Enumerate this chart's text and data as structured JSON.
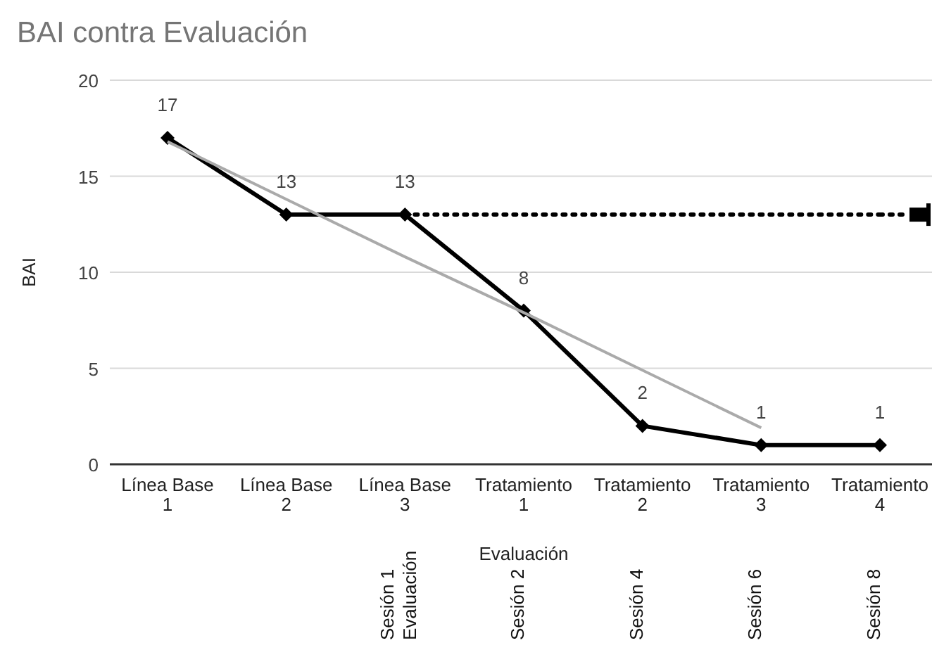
{
  "chart_data": {
    "type": "line",
    "title": "BAI contra Evaluación",
    "xlabel": "Evaluación",
    "ylabel": "BAI",
    "categories": [
      "Línea Base 1",
      "Línea Base 2",
      "Línea Base 3",
      "Tratamiento 1",
      "Tratamiento 2",
      "Tratamiento 3",
      "Tratamiento 4"
    ],
    "series": [
      {
        "color": "#000000",
        "values": [
          17,
          13,
          13,
          8,
          2,
          1,
          1
        ],
        "marker": "diamond",
        "line_style": "solid",
        "value_labels": [
          "17",
          "13",
          "13",
          "8",
          "2",
          "1",
          "1"
        ]
      },
      {
        "color": "#aaaaaa",
        "values": [
          16.8,
          13.8,
          10.8,
          7.9,
          4.9,
          1.9,
          null
        ],
        "marker": "none",
        "line_style": "solid"
      },
      {
        "color": "#000000",
        "values": [
          null,
          null,
          13,
          13,
          13,
          13,
          13
        ],
        "marker": "none",
        "line_style": "dotted"
      }
    ],
    "ylim": [
      0,
      20
    ],
    "yticks": [
      0,
      5,
      10,
      15,
      20
    ],
    "grid": "y",
    "annotations": [
      "Sesión 1\nEvaluación",
      "Sesión 2",
      "Sesión 4",
      "Sesión 6",
      "Sesión 8"
    ]
  }
}
